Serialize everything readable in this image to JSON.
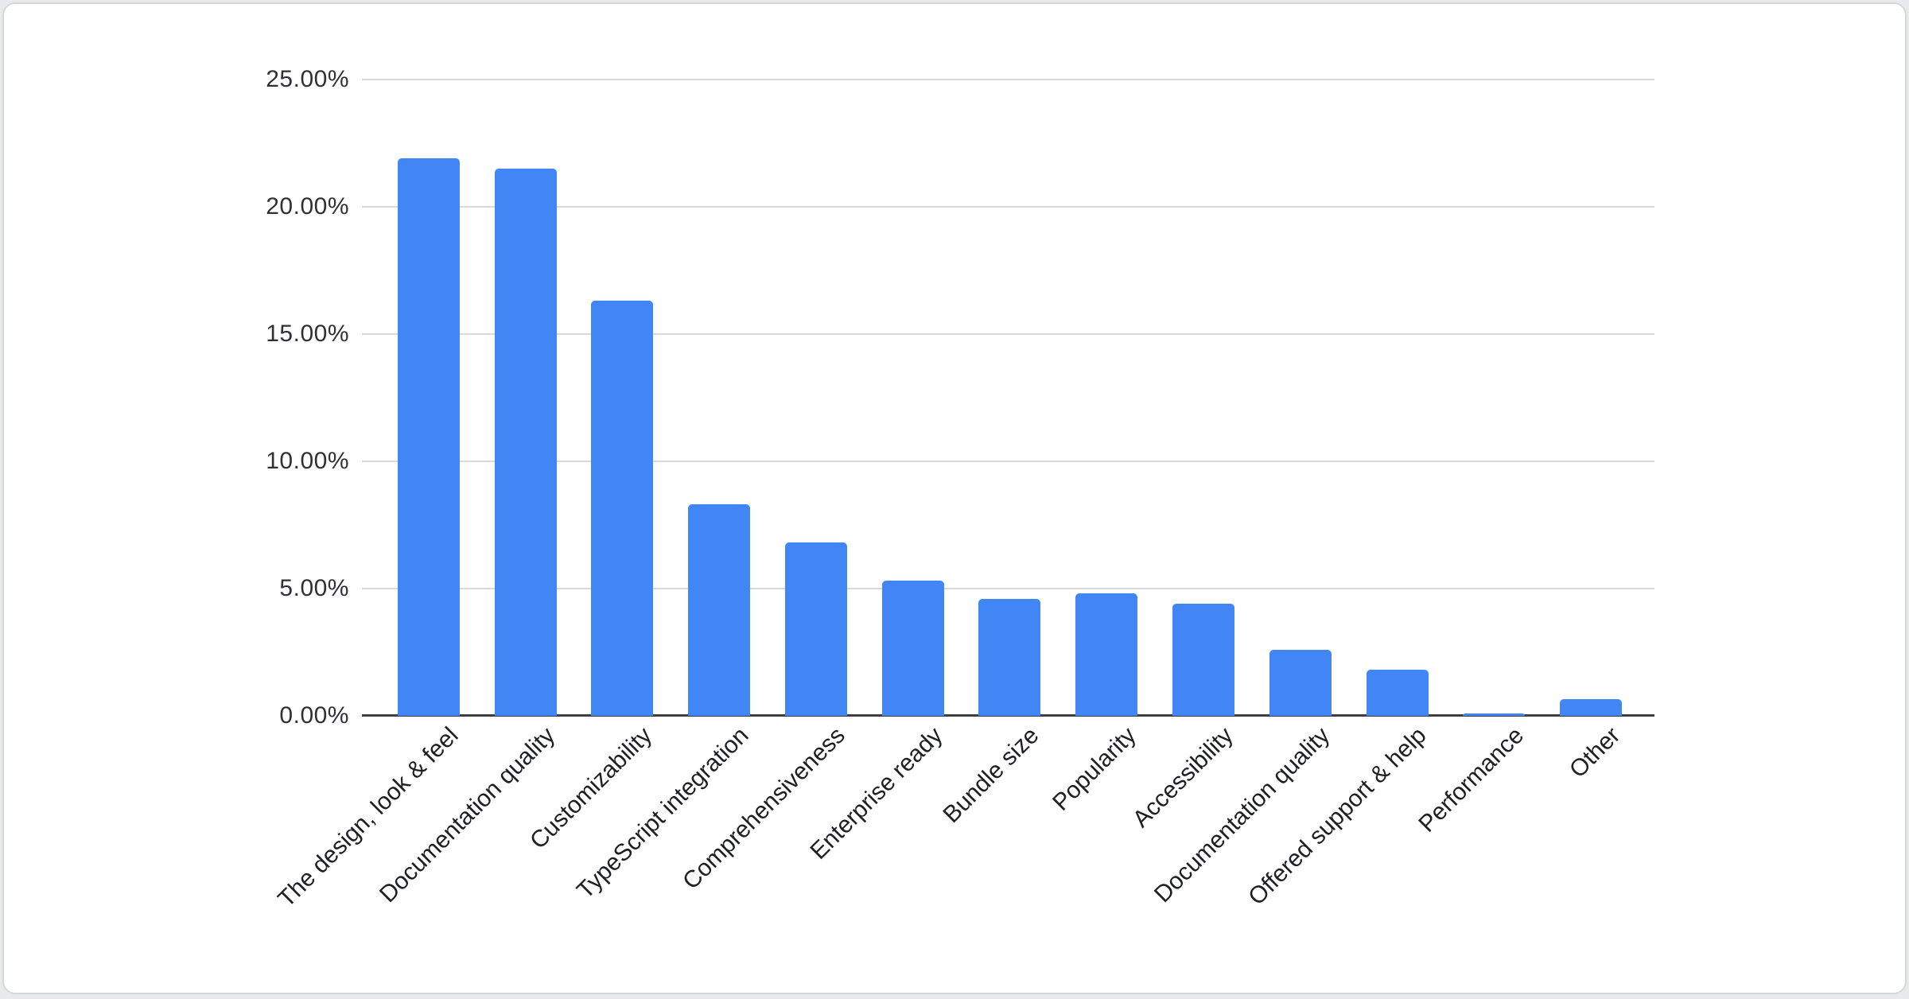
{
  "page": {
    "background": "#e7e9ec",
    "card_background": "#ffffff",
    "card_border": "#d5d8db"
  },
  "chart_data": {
    "type": "bar",
    "title": "",
    "xlabel": "",
    "ylabel": "",
    "categories": [
      "The design, look & feel",
      "Documentation quality",
      "Customizability",
      "TypeScript integration",
      "Comprehensiveness",
      "Enterprise ready",
      "Bundle size",
      "Popularity",
      "Accessibility",
      "Documentation quality",
      "Offered support & help",
      "Performance",
      "Other"
    ],
    "values": [
      21.9,
      21.5,
      16.3,
      8.3,
      6.8,
      5.3,
      4.6,
      4.8,
      4.4,
      2.6,
      1.8,
      0.1,
      0.65
    ],
    "value_unit": "%",
    "ylim": [
      0,
      25
    ],
    "y_ticks": [
      "25.00%",
      "20.00%",
      "15.00%",
      "10.00%",
      "5.00%",
      "0.00%"
    ],
    "grid": true,
    "legend_position": "none",
    "bar_color": "#4285f4",
    "axis_colors": {
      "gridline": "#d9d9d9",
      "baseline": "#3d3f42",
      "tick_text": "#303134",
      "category_text": "#1e1f21"
    }
  }
}
